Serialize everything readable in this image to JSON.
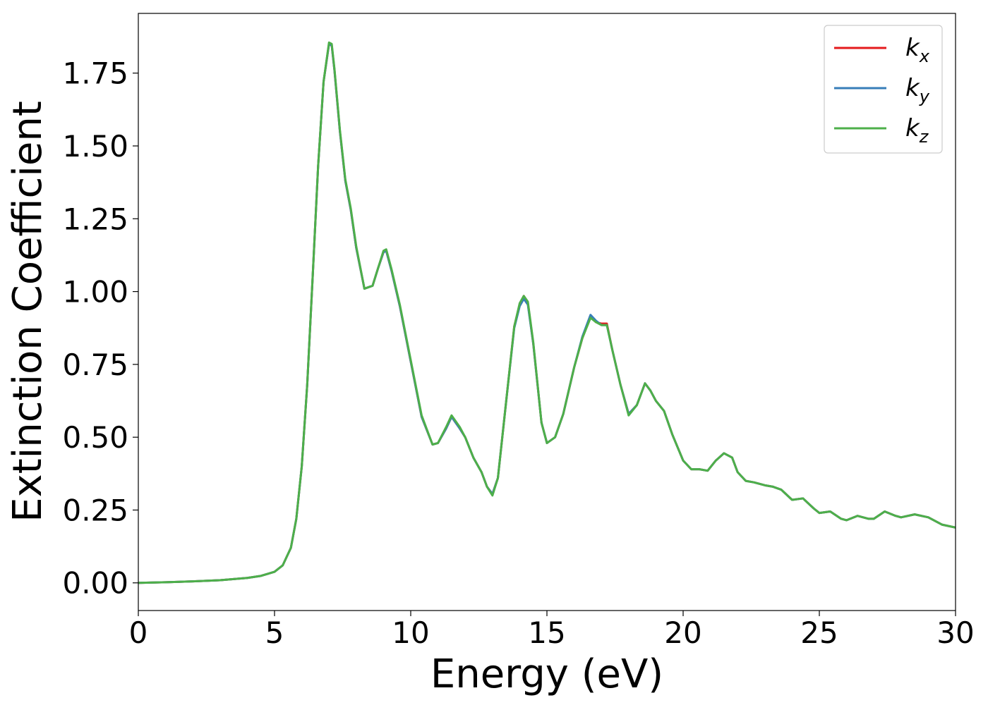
{
  "chart_data": {
    "type": "line",
    "xlabel": "Energy (eV)",
    "ylabel": "Extinction Coefficient",
    "xlim": [
      0,
      30
    ],
    "ylim": [
      -0.095,
      1.955
    ],
    "xticks": [
      0,
      5,
      10,
      15,
      20,
      25,
      30
    ],
    "xtick_labels": [
      "0",
      "5",
      "10",
      "15",
      "20",
      "25",
      "30"
    ],
    "yticks": [
      0.0,
      0.25,
      0.5,
      0.75,
      1.0,
      1.25,
      1.5,
      1.75
    ],
    "ytick_labels": [
      "0.00",
      "0.25",
      "0.50",
      "0.75",
      "1.00",
      "1.25",
      "1.50",
      "1.75"
    ],
    "grid": false,
    "legend_position": "top-right",
    "series": [
      {
        "name": "k_x",
        "label_base": "k",
        "label_sub": "x",
        "color": "#e41a1c",
        "x": [
          0,
          1,
          2,
          3,
          4,
          4.5,
          5,
          5.3,
          5.6,
          5.8,
          6.0,
          6.2,
          6.4,
          6.6,
          6.8,
          7.0,
          7.1,
          7.2,
          7.4,
          7.6,
          7.8,
          8.0,
          8.3,
          8.6,
          8.8,
          9.0,
          9.1,
          9.3,
          9.6,
          10.0,
          10.4,
          10.8,
          11.0,
          11.3,
          11.5,
          11.8,
          12.0,
          12.3,
          12.6,
          12.8,
          13.0,
          13.2,
          13.5,
          13.8,
          14.0,
          14.15,
          14.3,
          14.5,
          14.8,
          15.0,
          15.3,
          15.6,
          16.0,
          16.3,
          16.6,
          16.8,
          17.0,
          17.2,
          17.4,
          17.7,
          18.0,
          18.3,
          18.6,
          18.8,
          19.0,
          19.3,
          19.6,
          20.0,
          20.3,
          20.6,
          20.9,
          21.2,
          21.5,
          21.8,
          22.0,
          22.3,
          22.6,
          23.0,
          23.3,
          23.6,
          24.0,
          24.4,
          24.8,
          25.0,
          25.4,
          25.8,
          26.0,
          26.4,
          26.8,
          27.0,
          27.4,
          27.8,
          28.0,
          28.5,
          29.0,
          29.5,
          30.0
        ],
        "y": [
          0.0,
          0.002,
          0.005,
          0.009,
          0.017,
          0.024,
          0.038,
          0.06,
          0.12,
          0.22,
          0.4,
          0.68,
          1.05,
          1.43,
          1.72,
          1.85,
          1.845,
          1.76,
          1.55,
          1.38,
          1.28,
          1.15,
          1.01,
          1.02,
          1.08,
          1.135,
          1.14,
          1.07,
          0.95,
          0.76,
          0.57,
          0.475,
          0.48,
          0.53,
          0.57,
          0.53,
          0.5,
          0.43,
          0.38,
          0.33,
          0.305,
          0.36,
          0.62,
          0.88,
          0.955,
          0.985,
          0.96,
          0.82,
          0.55,
          0.48,
          0.5,
          0.58,
          0.74,
          0.84,
          0.915,
          0.895,
          0.89,
          0.89,
          0.8,
          0.68,
          0.58,
          0.61,
          0.685,
          0.66,
          0.625,
          0.59,
          0.51,
          0.42,
          0.39,
          0.39,
          0.385,
          0.42,
          0.445,
          0.43,
          0.38,
          0.35,
          0.345,
          0.335,
          0.33,
          0.32,
          0.285,
          0.29,
          0.255,
          0.24,
          0.245,
          0.22,
          0.215,
          0.23,
          0.22,
          0.22,
          0.245,
          0.23,
          0.225,
          0.235,
          0.225,
          0.2,
          0.19
        ]
      },
      {
        "name": "k_y",
        "label_base": "k",
        "label_sub": "y",
        "color": "#377eb8",
        "x": [
          0,
          1,
          2,
          3,
          4,
          4.5,
          5,
          5.3,
          5.6,
          5.8,
          6.0,
          6.2,
          6.4,
          6.6,
          6.8,
          7.0,
          7.1,
          7.2,
          7.4,
          7.6,
          7.8,
          8.0,
          8.3,
          8.6,
          8.8,
          9.0,
          9.1,
          9.3,
          9.6,
          10.0,
          10.4,
          10.8,
          11.0,
          11.3,
          11.5,
          11.8,
          12.0,
          12.3,
          12.6,
          12.8,
          13.0,
          13.2,
          13.5,
          13.8,
          14.0,
          14.15,
          14.3,
          14.5,
          14.8,
          15.0,
          15.3,
          15.6,
          16.0,
          16.3,
          16.6,
          16.8,
          17.0,
          17.2,
          17.4,
          17.7,
          18.0,
          18.3,
          18.6,
          18.8,
          19.0,
          19.3,
          19.6,
          20.0,
          20.3,
          20.6,
          20.9,
          21.2,
          21.5,
          21.8,
          22.0,
          22.3,
          22.6,
          23.0,
          23.3,
          23.6,
          24.0,
          24.4,
          24.8,
          25.0,
          25.4,
          25.8,
          26.0,
          26.4,
          26.8,
          27.0,
          27.4,
          27.8,
          28.0,
          28.5,
          29.0,
          29.5,
          30.0
        ],
        "y": [
          0.0,
          0.002,
          0.005,
          0.009,
          0.017,
          0.024,
          0.038,
          0.06,
          0.12,
          0.22,
          0.4,
          0.68,
          1.05,
          1.43,
          1.72,
          1.85,
          1.845,
          1.76,
          1.55,
          1.38,
          1.28,
          1.15,
          1.01,
          1.02,
          1.08,
          1.135,
          1.14,
          1.07,
          0.95,
          0.76,
          0.57,
          0.475,
          0.48,
          0.53,
          0.57,
          0.53,
          0.5,
          0.43,
          0.38,
          0.33,
          0.305,
          0.36,
          0.62,
          0.875,
          0.95,
          0.975,
          0.955,
          0.82,
          0.55,
          0.48,
          0.5,
          0.58,
          0.74,
          0.845,
          0.92,
          0.9,
          0.885,
          0.885,
          0.8,
          0.68,
          0.58,
          0.61,
          0.685,
          0.66,
          0.625,
          0.59,
          0.51,
          0.42,
          0.39,
          0.39,
          0.385,
          0.42,
          0.445,
          0.43,
          0.38,
          0.35,
          0.345,
          0.335,
          0.33,
          0.32,
          0.285,
          0.29,
          0.255,
          0.24,
          0.245,
          0.22,
          0.215,
          0.23,
          0.22,
          0.22,
          0.245,
          0.23,
          0.225,
          0.235,
          0.225,
          0.2,
          0.19
        ]
      },
      {
        "name": "k_z",
        "label_base": "k",
        "label_sub": "z",
        "color": "#4daf4a",
        "x": [
          0,
          1,
          2,
          3,
          4,
          4.5,
          5,
          5.3,
          5.6,
          5.8,
          6.0,
          6.2,
          6.4,
          6.6,
          6.8,
          7.0,
          7.1,
          7.2,
          7.4,
          7.6,
          7.8,
          8.0,
          8.3,
          8.6,
          8.8,
          9.0,
          9.1,
          9.3,
          9.6,
          10.0,
          10.4,
          10.8,
          11.0,
          11.3,
          11.5,
          11.8,
          12.0,
          12.3,
          12.6,
          12.8,
          13.0,
          13.2,
          13.5,
          13.8,
          14.0,
          14.15,
          14.3,
          14.5,
          14.8,
          15.0,
          15.3,
          15.6,
          16.0,
          16.3,
          16.6,
          16.8,
          17.0,
          17.2,
          17.4,
          17.7,
          18.0,
          18.3,
          18.6,
          18.8,
          19.0,
          19.3,
          19.6,
          20.0,
          20.3,
          20.6,
          20.9,
          21.2,
          21.5,
          21.8,
          22.0,
          22.3,
          22.6,
          23.0,
          23.3,
          23.6,
          24.0,
          24.4,
          24.8,
          25.0,
          25.4,
          25.8,
          26.0,
          26.4,
          26.8,
          27.0,
          27.4,
          27.8,
          28.0,
          28.5,
          29.0,
          29.5,
          30.0
        ],
        "y": [
          0.0,
          0.002,
          0.005,
          0.009,
          0.017,
          0.024,
          0.038,
          0.06,
          0.12,
          0.22,
          0.4,
          0.68,
          1.05,
          1.43,
          1.72,
          1.855,
          1.85,
          1.765,
          1.555,
          1.385,
          1.285,
          1.155,
          1.01,
          1.02,
          1.08,
          1.14,
          1.145,
          1.075,
          0.955,
          0.765,
          0.575,
          0.475,
          0.48,
          0.535,
          0.575,
          0.535,
          0.5,
          0.43,
          0.38,
          0.33,
          0.3,
          0.36,
          0.62,
          0.88,
          0.96,
          0.985,
          0.965,
          0.825,
          0.55,
          0.48,
          0.5,
          0.58,
          0.74,
          0.84,
          0.91,
          0.895,
          0.885,
          0.885,
          0.8,
          0.68,
          0.575,
          0.61,
          0.685,
          0.66,
          0.625,
          0.59,
          0.51,
          0.42,
          0.39,
          0.39,
          0.385,
          0.42,
          0.445,
          0.43,
          0.38,
          0.35,
          0.345,
          0.335,
          0.33,
          0.32,
          0.285,
          0.29,
          0.255,
          0.24,
          0.245,
          0.22,
          0.215,
          0.23,
          0.22,
          0.22,
          0.245,
          0.23,
          0.225,
          0.235,
          0.225,
          0.2,
          0.19
        ]
      }
    ]
  }
}
